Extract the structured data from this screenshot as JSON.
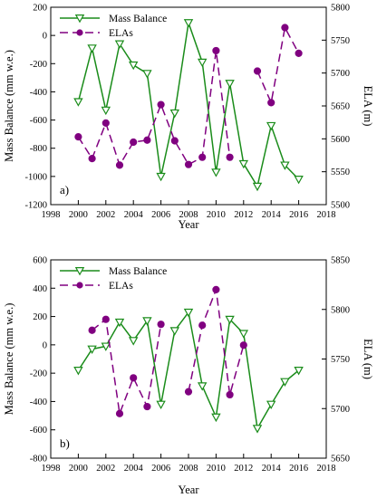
{
  "colors": {
    "mass_balance": "#1a8c1a",
    "ela": "#800080",
    "axis": "#000000"
  },
  "chart_data": [
    {
      "type": "line",
      "panel_label": "a)",
      "xlabel": "Year",
      "ylabel_left": "Mass Balance (mm w.e.)",
      "ylabel_right": "ELA (m)",
      "xlim": [
        1998,
        2018
      ],
      "ylim_left": [
        -1200,
        200
      ],
      "ylim_right": [
        5500,
        5800
      ],
      "xticks": [
        1998,
        2000,
        2002,
        2004,
        2006,
        2008,
        2010,
        2012,
        2014,
        2016,
        2018
      ],
      "yticks_left": [
        -1200,
        -1000,
        -800,
        -600,
        -400,
        -200,
        0,
        200
      ],
      "yticks_right": [
        5500,
        5550,
        5600,
        5650,
        5700,
        5750,
        5800
      ],
      "legend": "top-left",
      "series": [
        {
          "name": "Mass Balance",
          "axis": "left",
          "style": "solid",
          "marker": "triangle-down-open",
          "x": [
            2000,
            2001,
            2002,
            2003,
            2004,
            2005,
            2006,
            2007,
            2008,
            2009,
            2010,
            2011,
            2012,
            2013,
            2014,
            2015,
            2016
          ],
          "y": [
            -470,
            -90,
            -530,
            -60,
            -210,
            -270,
            -1000,
            -550,
            90,
            -190,
            -970,
            -340,
            -910,
            -1070,
            -640,
            -920,
            -1020
          ]
        },
        {
          "name": "ELAs",
          "axis": "right",
          "style": "dashed",
          "marker": "circle-filled",
          "x": [
            2000,
            2001,
            2002,
            2003,
            2004,
            2005,
            2006,
            2007,
            2008,
            2009,
            2010,
            2011,
            2012,
            2013,
            2014,
            2015,
            2016
          ],
          "y": [
            5603,
            5570,
            5624,
            5560,
            5595,
            5598,
            5652,
            5597,
            5561,
            5572,
            5734,
            5572,
            null,
            5703,
            5655,
            5769,
            5730
          ]
        }
      ]
    },
    {
      "type": "line",
      "panel_label": "b)",
      "xlabel": "Year",
      "ylabel_left": "Mass Balance (mm w.e.)",
      "ylabel_right": "ELA (m)",
      "xlim": [
        1998,
        2018
      ],
      "ylim_left": [
        -800,
        600
      ],
      "ylim_right": [
        5650,
        5850
      ],
      "xticks": [
        1998,
        2000,
        2002,
        2004,
        2006,
        2008,
        2010,
        2012,
        2014,
        2016,
        2018
      ],
      "yticks_left": [
        -800,
        -600,
        -400,
        -200,
        0,
        200,
        400,
        600
      ],
      "yticks_right": [
        5650,
        5700,
        5750,
        5800,
        5850
      ],
      "legend": "top-left",
      "series": [
        {
          "name": "Mass Balance",
          "axis": "left",
          "style": "solid",
          "marker": "triangle-down-open",
          "x": [
            2000,
            2001,
            2002,
            2003,
            2004,
            2005,
            2006,
            2007,
            2008,
            2009,
            2010,
            2011,
            2012,
            2013,
            2014,
            2015,
            2016
          ],
          "y": [
            -180,
            -30,
            -10,
            160,
            30,
            170,
            -420,
            100,
            230,
            -290,
            -510,
            180,
            80,
            -590,
            -420,
            -260,
            -180
          ]
        },
        {
          "name": "ELAs",
          "axis": "right",
          "style": "dashed",
          "marker": "circle-filled",
          "x": [
            2000,
            2001,
            2002,
            2003,
            2004,
            2005,
            2006,
            2007,
            2008,
            2009,
            2010,
            2011,
            2012,
            2013,
            2014,
            2015,
            2016
          ],
          "y": [
            null,
            5779,
            5790,
            5695,
            5731,
            5702,
            5785,
            null,
            5717,
            5784,
            5820,
            5714,
            5764,
            null,
            null,
            null,
            null
          ]
        }
      ]
    }
  ]
}
